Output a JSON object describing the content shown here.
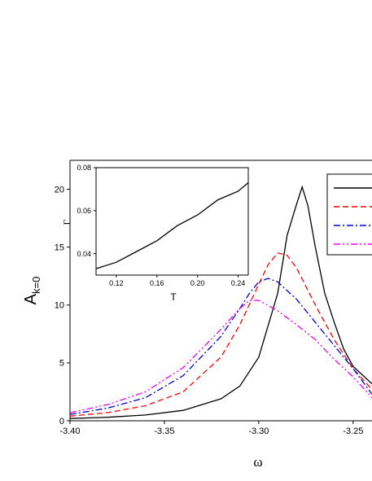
{
  "chart_data": [
    {
      "type": "line",
      "role": "main",
      "title": "",
      "xlabel": "ω",
      "ylabel": "A",
      "ylabel_subscript": "k=0",
      "xlim": [
        -3.4,
        -3.24
      ],
      "ylim": [
        0,
        22.5
      ],
      "x_ticks": [
        -3.4,
        -3.35,
        -3.3,
        -3.25
      ],
      "x_tick_labels": [
        "-3.40",
        "-3.35",
        "-3.30",
        "-3.25"
      ],
      "y_ticks": [
        0,
        5,
        10,
        15,
        20
      ],
      "y_tick_labels": [
        "0",
        "5",
        "10",
        "15",
        "20"
      ],
      "grid": false,
      "legend": "top-right",
      "series": [
        {
          "color": "#000000",
          "dash": "solid",
          "x": [
            -3.4,
            -3.38,
            -3.36,
            -3.34,
            -3.32,
            -3.31,
            -3.3,
            -3.29,
            -3.285,
            -3.28,
            -3.277,
            -3.274,
            -3.27,
            -3.265,
            -3.26,
            -3.255,
            -3.25,
            -3.24
          ],
          "y": [
            0.2,
            0.3,
            0.5,
            0.9,
            1.9,
            3.0,
            5.5,
            11.0,
            16.0,
            18.7,
            20.2,
            18.6,
            15.0,
            11.0,
            8.5,
            6.2,
            4.7,
            3.2
          ]
        },
        {
          "color": "#ff0000",
          "dash": "dashed",
          "x": [
            -3.4,
            -3.38,
            -3.36,
            -3.34,
            -3.32,
            -3.31,
            -3.3,
            -3.295,
            -3.29,
            -3.285,
            -3.28,
            -3.27,
            -3.26,
            -3.25,
            -3.24
          ],
          "y": [
            0.4,
            0.7,
            1.3,
            2.5,
            5.5,
            8.3,
            11.8,
            13.5,
            14.5,
            14.3,
            13.2,
            10.0,
            7.0,
            4.5,
            2.7
          ]
        },
        {
          "color": "#0000cc",
          "dash": "dashdot",
          "x": [
            -3.4,
            -3.38,
            -3.36,
            -3.34,
            -3.32,
            -3.31,
            -3.305,
            -3.3,
            -3.295,
            -3.29,
            -3.28,
            -3.27,
            -3.26,
            -3.25,
            -3.24
          ],
          "y": [
            0.55,
            1.1,
            2.0,
            3.9,
            7.3,
            9.7,
            11.0,
            12.0,
            12.3,
            12.0,
            10.5,
            8.5,
            6.5,
            4.5,
            2.3
          ]
        },
        {
          "color": "#ee00ee",
          "dash": "dashdotdot",
          "x": [
            -3.4,
            -3.38,
            -3.36,
            -3.34,
            -3.32,
            -3.31,
            -3.305,
            -3.3,
            -3.29,
            -3.28,
            -3.27,
            -3.26,
            -3.25,
            -3.24
          ],
          "y": [
            0.7,
            1.4,
            2.5,
            4.6,
            7.9,
            9.7,
            10.4,
            10.4,
            9.5,
            8.3,
            7.0,
            5.3,
            3.8,
            2.0
          ]
        }
      ]
    },
    {
      "type": "line",
      "role": "inset",
      "title": "",
      "xlabel": "T",
      "ylabel": "Γ",
      "xlim": [
        0.1,
        0.25
      ],
      "ylim": [
        0.03,
        0.08
      ],
      "x_ticks": [
        0.12,
        0.16,
        0.2,
        0.24
      ],
      "x_tick_labels": [
        "0.12",
        "0.16",
        "0.20",
        "0.24"
      ],
      "y_ticks": [
        0.04,
        0.06,
        0.08
      ],
      "y_tick_labels": [
        "0.04",
        "0.06",
        "0.08"
      ],
      "grid": false,
      "series": [
        {
          "color": "#000000",
          "dash": "solid",
          "x": [
            0.1,
            0.12,
            0.14,
            0.16,
            0.18,
            0.2,
            0.22,
            0.24,
            0.25
          ],
          "y": [
            0.033,
            0.036,
            0.041,
            0.046,
            0.053,
            0.058,
            0.065,
            0.069,
            0.073
          ]
        }
      ]
    }
  ]
}
